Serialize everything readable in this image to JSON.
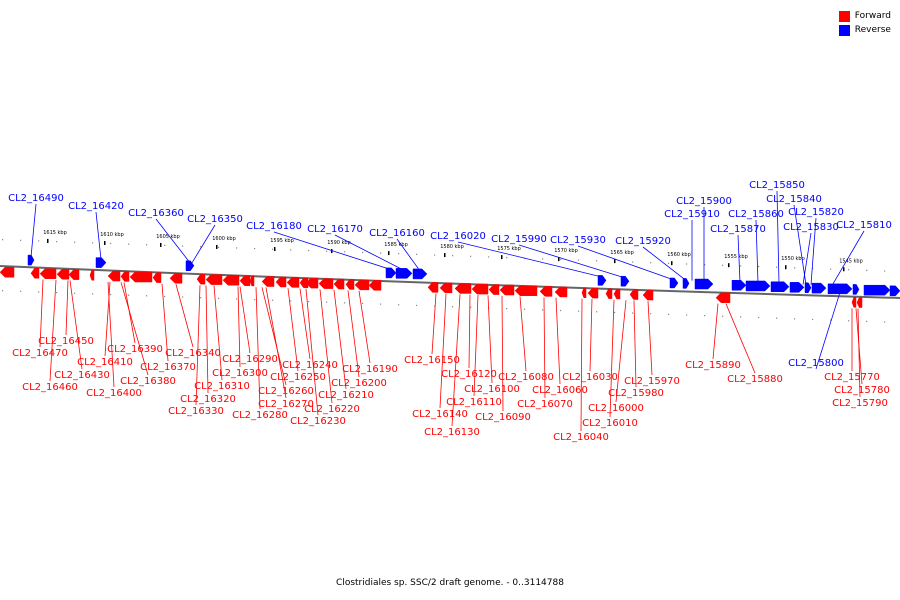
{
  "legend": {
    "forward_label": "Forward",
    "reverse_label": "Reverse",
    "forward_color": "#ff0000",
    "reverse_color": "#0000ff"
  },
  "caption": "Clostridiales sp. SSC/2 draft genome. - 0..3114788",
  "scale": {
    "unit": "kbp",
    "labels_kbp": [
      1615,
      1610,
      1605,
      1600,
      1595,
      1590,
      1585,
      1580,
      1575,
      1570,
      1565,
      1560,
      1555,
      1550,
      1545
    ]
  },
  "genes_reverse": [
    {
      "label": "CL2_16490"
    },
    {
      "label": "CL2_16420"
    },
    {
      "label": "CL2_16360"
    },
    {
      "label": "CL2_16350"
    },
    {
      "label": "CL2_16180"
    },
    {
      "label": "CL2_16170"
    },
    {
      "label": "CL2_16160"
    },
    {
      "label": "CL2_16020"
    },
    {
      "label": "CL2_15990"
    },
    {
      "label": "CL2_15930"
    },
    {
      "label": "CL2_15920"
    },
    {
      "label": "CL2_15910"
    },
    {
      "label": "CL2_15900"
    },
    {
      "label": "CL2_15870"
    },
    {
      "label": "CL2_15860"
    },
    {
      "label": "CL2_15850"
    },
    {
      "label": "CL2_15840"
    },
    {
      "label": "CL2_15830"
    },
    {
      "label": "CL2_15820"
    },
    {
      "label": "CL2_15810"
    },
    {
      "label": "CL2_15800"
    }
  ],
  "genes_forward": [
    {
      "label": "CL2_16450"
    },
    {
      "label": "CL2_16470"
    },
    {
      "label": "CL2_16430"
    },
    {
      "label": "CL2_16460"
    },
    {
      "label": "CL2_16410"
    },
    {
      "label": "CL2_16390"
    },
    {
      "label": "CL2_16380"
    },
    {
      "label": "CL2_16400"
    },
    {
      "label": "CL2_16370"
    },
    {
      "label": "CL2_16340"
    },
    {
      "label": "CL2_16300"
    },
    {
      "label": "CL2_16290"
    },
    {
      "label": "CL2_16310"
    },
    {
      "label": "CL2_16320"
    },
    {
      "label": "CL2_16330"
    },
    {
      "label": "CL2_16260"
    },
    {
      "label": "CL2_16270"
    },
    {
      "label": "CL2_16280"
    },
    {
      "label": "CL2_16250"
    },
    {
      "label": "CL2_16240"
    },
    {
      "label": "CL2_16220"
    },
    {
      "label": "CL2_16230"
    },
    {
      "label": "CL2_16210"
    },
    {
      "label": "CL2_16200"
    },
    {
      "label": "CL2_16190"
    },
    {
      "label": "CL2_16150"
    },
    {
      "label": "CL2_16140"
    },
    {
      "label": "CL2_16130"
    },
    {
      "label": "CL2_16120"
    },
    {
      "label": "CL2_16110"
    },
    {
      "label": "CL2_16100"
    },
    {
      "label": "CL2_16090"
    },
    {
      "label": "CL2_16080"
    },
    {
      "label": "CL2_16070"
    },
    {
      "label": "CL2_16060"
    },
    {
      "label": "CL2_16040"
    },
    {
      "label": "CL2_16030"
    },
    {
      "label": "CL2_16010"
    },
    {
      "label": "CL2_16000"
    },
    {
      "label": "CL2_15980"
    },
    {
      "label": "CL2_15970"
    },
    {
      "label": "CL2_15890"
    },
    {
      "label": "CL2_15880"
    },
    {
      "label": "CL2_15770"
    },
    {
      "label": "CL2_15780"
    },
    {
      "label": "CL2_15790"
    }
  ]
}
